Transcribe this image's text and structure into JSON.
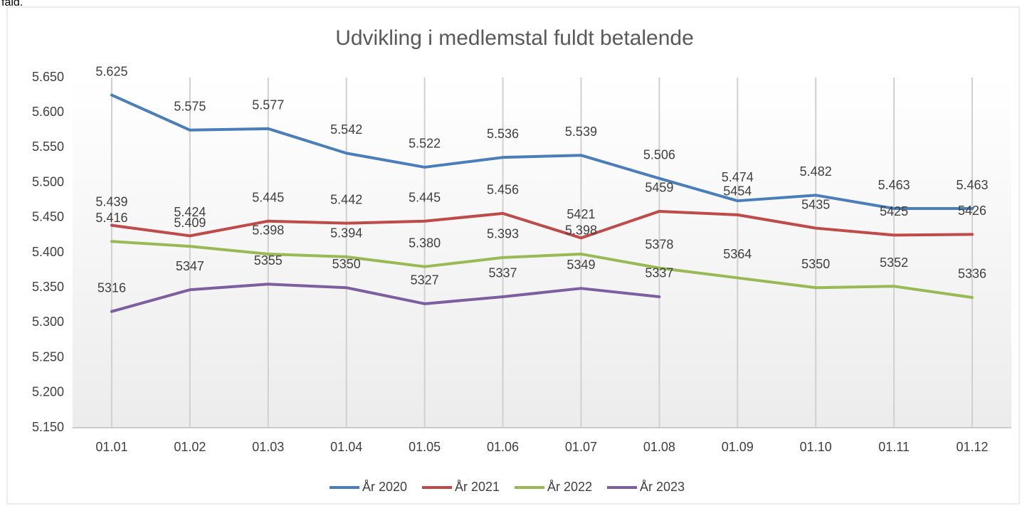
{
  "page_note": "fald.",
  "chart_data": {
    "type": "line",
    "title": "Udvikling i medlemstal fuldt betalende",
    "categories": [
      "01.01",
      "01.02",
      "01.03",
      "01.04",
      "01.05",
      "01.06",
      "01.07",
      "01.08",
      "01.09",
      "01.10",
      "01.11",
      "01.12"
    ],
    "ylim": [
      5150,
      5650
    ],
    "yticks": [
      {
        "value": 5150,
        "label": "5.150"
      },
      {
        "value": 5200,
        "label": "5.200"
      },
      {
        "value": 5250,
        "label": "5.250"
      },
      {
        "value": 5300,
        "label": "5.300"
      },
      {
        "value": 5350,
        "label": "5.350"
      },
      {
        "value": 5400,
        "label": "5.400"
      },
      {
        "value": 5450,
        "label": "5.450"
      },
      {
        "value": 5500,
        "label": "5.500"
      },
      {
        "value": 5550,
        "label": "5.550"
      },
      {
        "value": 5600,
        "label": "5.600"
      },
      {
        "value": 5650,
        "label": "5.650"
      }
    ],
    "grid": true,
    "legend": "bottom",
    "series": [
      {
        "name": "År 2020",
        "color": "#4a7ebb",
        "values": [
          5625,
          5575,
          5577,
          5542,
          5522,
          5536,
          5539,
          5506,
          5474,
          5482,
          5463,
          5463
        ],
        "value_labels": [
          "5.625",
          "5.575",
          "5.577",
          "5.542",
          "5.522",
          "5.536",
          "5.539",
          "5.506",
          "5.474",
          "5.482",
          "5.463",
          "5.463"
        ]
      },
      {
        "name": "År 2021",
        "color": "#be4b48",
        "values": [
          5439,
          5424,
          5445,
          5442,
          5445,
          5456,
          5421,
          5459,
          5454,
          5435,
          5425,
          5426
        ],
        "value_labels": [
          "5.439",
          "5.424",
          "5.445",
          "5.442",
          "5.445",
          "5.456",
          "5421",
          "5459",
          "5454",
          "5435",
          "5425",
          "5426"
        ]
      },
      {
        "name": "År 2022",
        "color": "#98b954",
        "values": [
          5416,
          5409,
          5398,
          5394,
          5380,
          5393,
          5398,
          5378,
          5364,
          5350,
          5352,
          5336
        ],
        "value_labels": [
          "5.416",
          "5.409",
          "5.398",
          "5.394",
          "5.380",
          "5.393",
          "5.398",
          "5378",
          "5364",
          "5350",
          "5352",
          "5336"
        ]
      },
      {
        "name": "År 2023",
        "color": "#7d5fa0",
        "values": [
          5316,
          5347,
          5355,
          5350,
          5327,
          5337,
          5349,
          5337,
          null,
          null,
          null,
          null
        ],
        "value_labels": [
          "5316",
          "5347",
          "5355",
          "5350",
          "5327",
          "5337",
          "5349",
          "5337",
          null,
          null,
          null,
          null
        ]
      }
    ]
  }
}
